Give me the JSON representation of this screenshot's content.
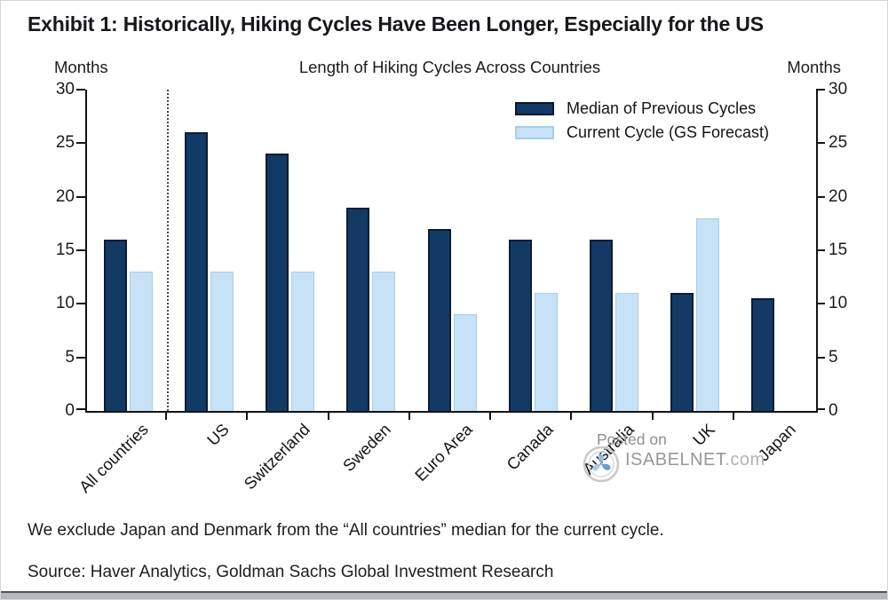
{
  "title": "Exhibit 1: Historically, Hiking Cycles Have Been Longer, Especially for the US",
  "chart_data": {
    "type": "bar",
    "title": "Length of Hiking Cycles Across Countries",
    "y_left_title": "Months",
    "y_right_title": "Months",
    "ylim": [
      0,
      30
    ],
    "y_ticks": [
      0,
      5,
      10,
      15,
      20,
      25,
      30
    ],
    "grid": false,
    "legend_position": "top-right",
    "separator_after_index": 0,
    "categories": [
      "All countries",
      "US",
      "Switzerland",
      "Sweden",
      "Euro Area",
      "Canada",
      "Australia",
      "UK",
      "Japan"
    ],
    "series": [
      {
        "name": "Median of Previous Cycles",
        "color": "#123a64",
        "border_color": "#0a1c33",
        "values": [
          16,
          26,
          24,
          19,
          17,
          16,
          16,
          11,
          10.5
        ]
      },
      {
        "name": "Current Cycle (GS Forecast)",
        "color": "#c7e2f6",
        "border_color": "#a5cdeb",
        "values": [
          13,
          13,
          13,
          13,
          9,
          11,
          11,
          18,
          null
        ]
      }
    ]
  },
  "watermark": {
    "line1": "Posted on",
    "site_name": "ISABELNET",
    "site_suffix": ".com",
    "logo": "isabelnet-swirl-icon",
    "logo_color": "#6fa8d6"
  },
  "footnotes": {
    "note": "We exclude Japan and Denmark from the “All countries” median for the current cycle.",
    "source": "Source: Haver Analytics, Goldman Sachs Global Investment Research"
  }
}
